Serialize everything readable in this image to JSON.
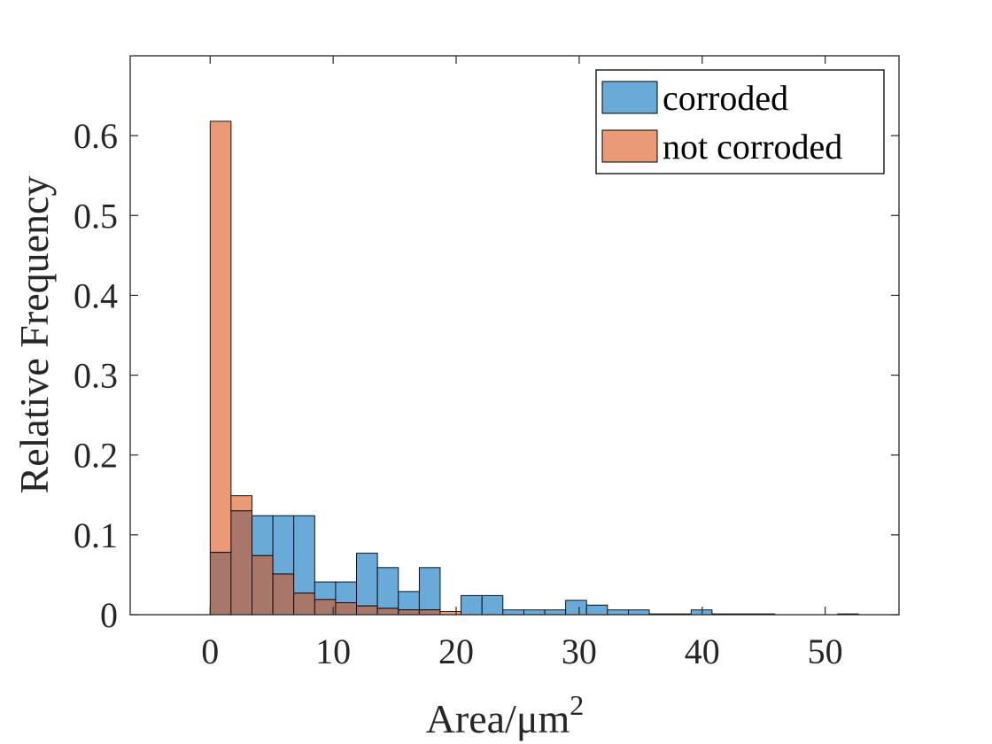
{
  "chart_data": {
    "type": "bar",
    "subtype": "overlaid-histogram",
    "xlabel": "Area/μm",
    "xlabel_superscript": "2",
    "ylabel": "Relative Frequency",
    "xlim": [
      -6.5,
      56
    ],
    "ylim": [
      0,
      0.7
    ],
    "x_ticks": [
      0,
      10,
      20,
      30,
      40,
      50
    ],
    "y_ticks": [
      0,
      0.1,
      0.2,
      0.3,
      0.4,
      0.5,
      0.6
    ],
    "y_tick_labels": [
      "0",
      "0.1",
      "0.2",
      "0.3",
      "0.4",
      "0.5",
      "0.6"
    ],
    "bin_width": 1.7,
    "grid": false,
    "legend_position": "top-right",
    "overlap_color": "#A8776A",
    "series": [
      {
        "name": "corroded",
        "color": "#6AAAD9",
        "bin_starts": [
          0,
          1.7,
          3.4,
          5.1,
          6.8,
          8.5,
          10.2,
          11.9,
          13.6,
          15.3,
          17.0,
          20.4,
          22.1,
          23.8,
          25.5,
          27.2,
          28.9,
          30.6,
          32.3,
          34.0,
          35.7,
          37.4,
          39.1,
          40.8,
          42.5,
          44.2,
          51.0
        ],
        "values": [
          0.078,
          0.13,
          0.124,
          0.124,
          0.124,
          0.041,
          0.041,
          0.077,
          0.059,
          0.029,
          0.059,
          0.024,
          0.024,
          0.006,
          0.006,
          0.006,
          0.018,
          0.012,
          0.006,
          0.006,
          0.001,
          0.001,
          0.006,
          0.001,
          0.001,
          0.001,
          0.001
        ]
      },
      {
        "name": "not corroded",
        "color": "#EB9A78",
        "bin_starts": [
          0,
          1.7,
          3.4,
          5.1,
          6.8,
          8.5,
          10.2,
          11.9,
          13.6,
          15.3,
          17.0,
          18.7
        ],
        "values": [
          0.618,
          0.149,
          0.074,
          0.051,
          0.027,
          0.019,
          0.015,
          0.011,
          0.008,
          0.006,
          0.006,
          0.004
        ]
      }
    ]
  }
}
